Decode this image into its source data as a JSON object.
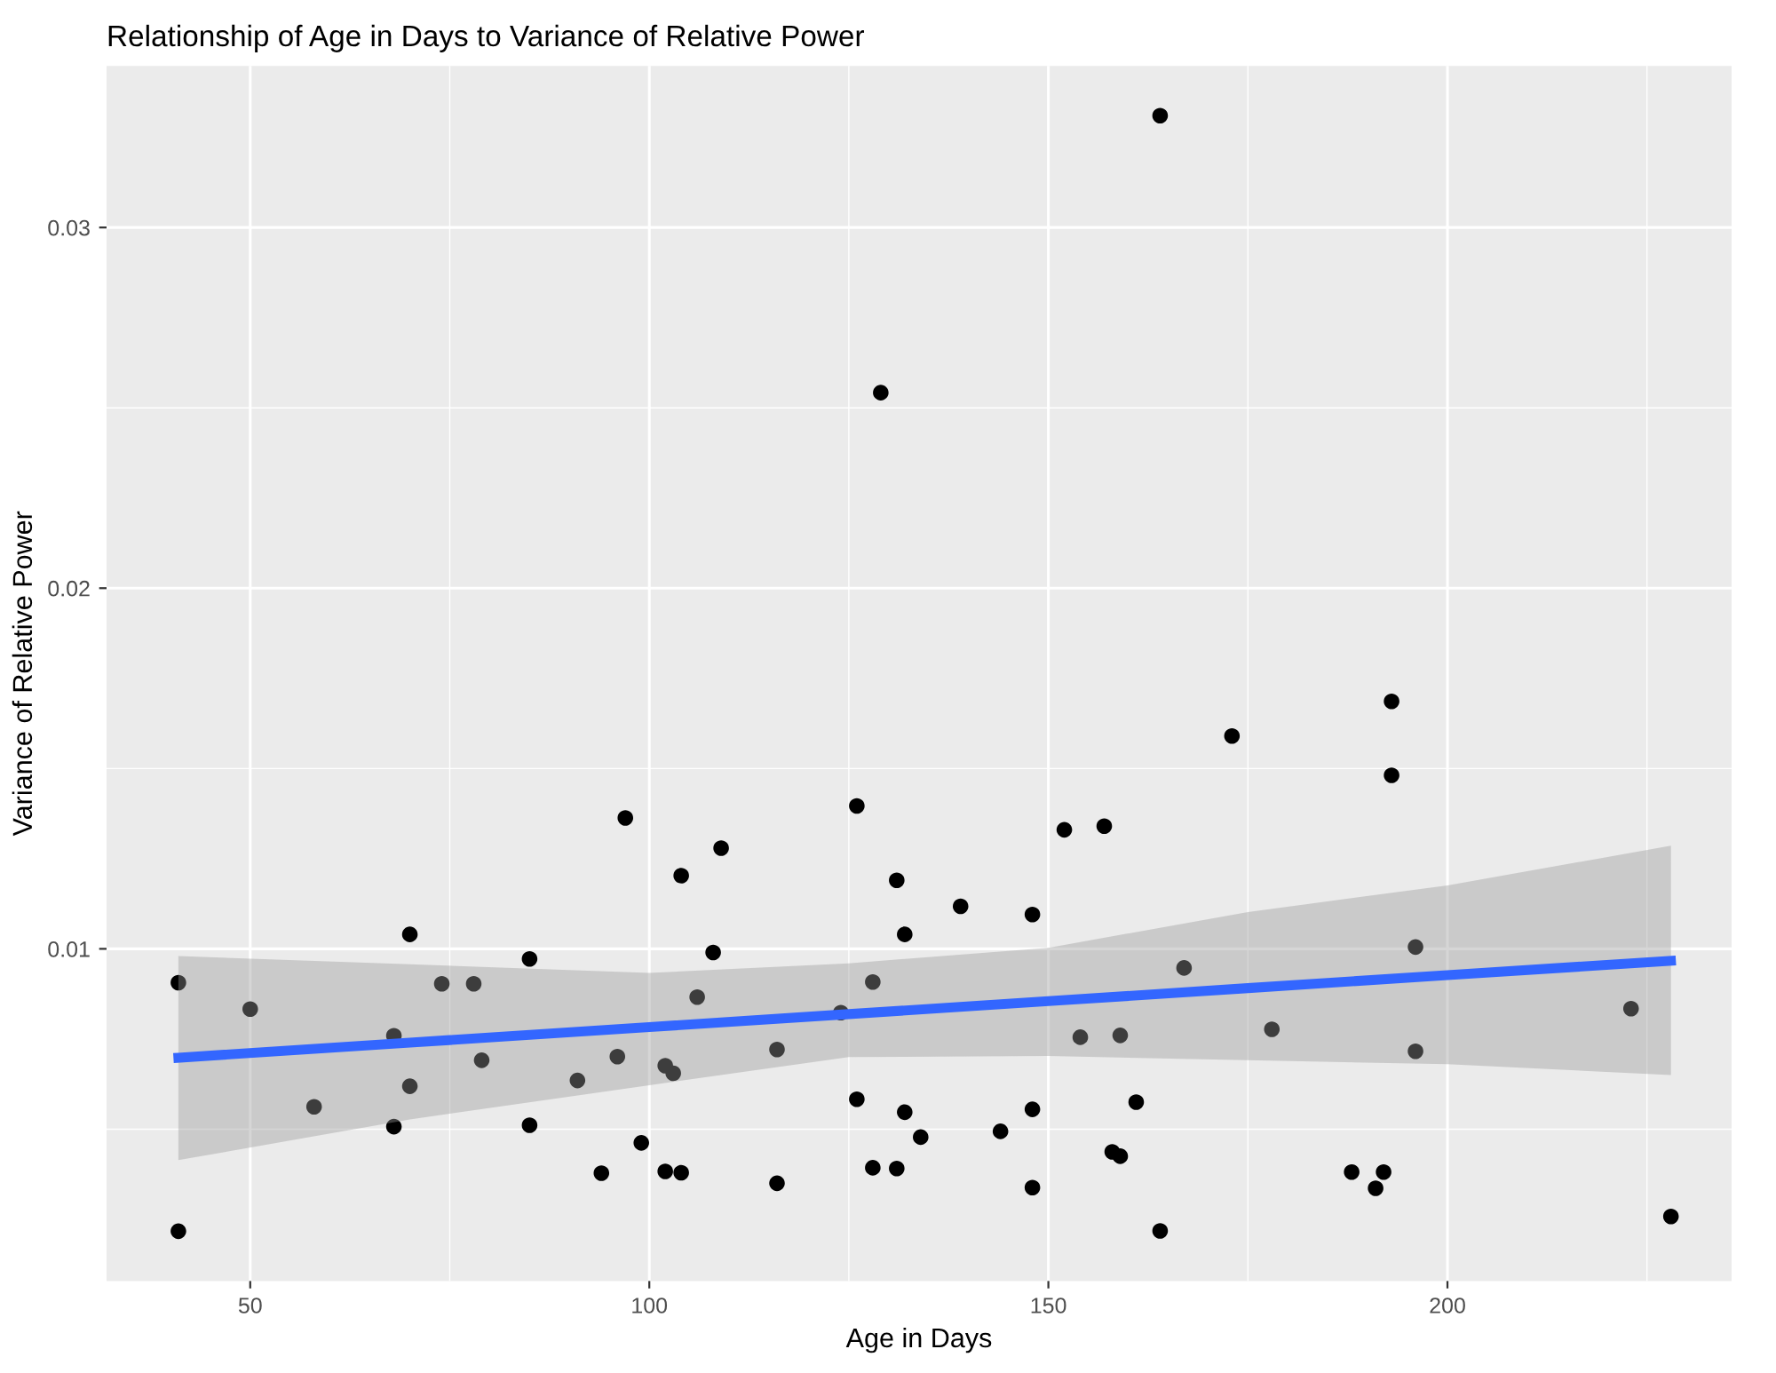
{
  "chart_data": {
    "type": "scatter",
    "title": "Relationship of Age in Days to Variance of Relative Power",
    "xlabel": "Age in Days",
    "ylabel": "Variance of Relative Power",
    "xlim": [
      32,
      235.6
    ],
    "ylim": [
      0.00079,
      0.03448
    ],
    "xticks": [
      50,
      {
        "value": 75,
        "label": null
      },
      100,
      {
        "value": 125,
        "label": null
      },
      150,
      {
        "value": 175,
        "label": null
      },
      200,
      {
        "value": 225,
        "label": null
      }
    ],
    "yticks": [
      {
        "value": 0.005,
        "label": null
      },
      0.01,
      {
        "value": 0.015,
        "label": null
      },
      0.02,
      {
        "value": 0.025,
        "label": null
      },
      0.03
    ],
    "grid": true,
    "marker": "circle",
    "series": [
      {
        "color": "#000000",
        "x": [
          41,
          41,
          50,
          58,
          68,
          68,
          70,
          70,
          74,
          78,
          79,
          85,
          85,
          91,
          96,
          97,
          94,
          99,
          102,
          103,
          102,
          104,
          104,
          106,
          108,
          109,
          116,
          116,
          124,
          126,
          126,
          128,
          128,
          131,
          132,
          132,
          131,
          134,
          139,
          148,
          144,
          148,
          148,
          152,
          157,
          154,
          159,
          158,
          159,
          161,
          164,
          167,
          173,
          178,
          188,
          192,
          191,
          193,
          193,
          196,
          196,
          223,
          228,
          129,
          164
        ],
        "values": [
          0.00906,
          0.00217,
          0.00833,
          0.00562,
          0.00759,
          0.00507,
          0.00619,
          0.0104,
          0.00903,
          0.00903,
          0.00691,
          0.00972,
          0.00511,
          0.00635,
          0.00701,
          0.01363,
          0.00378,
          0.00462,
          0.00676,
          0.00655,
          0.00383,
          0.00379,
          0.01203,
          0.00866,
          0.0099,
          0.01279,
          0.00721,
          0.0035,
          0.00823,
          0.01396,
          0.00583,
          0.00908,
          0.00393,
          0.0119,
          0.0104,
          0.00547,
          0.00391,
          0.00478,
          0.01118,
          0.01095,
          0.00494,
          0.00555,
          0.00338,
          0.0133,
          0.0134,
          0.00755,
          0.0076,
          0.00437,
          0.00425,
          0.00575,
          0.00218,
          0.00947,
          0.0159,
          0.00777,
          0.00381,
          0.00381,
          0.00336,
          0.01686,
          0.01481,
          0.01005,
          0.00716,
          0.00834,
          0.00258,
          0.02542,
          0.0331
        ]
      },
      {
        "type": "line",
        "color": "#3366ff",
        "marker": "none",
        "line_style": "solid",
        "x": [
          41,
          70,
          100,
          125,
          150,
          175,
          200,
          228
        ],
        "values": [
          0.00698,
          0.0074,
          0.00783,
          0.00819,
          0.00855,
          0.00891,
          0.00927,
          0.00967
        ],
        "lower": [
          0.00414,
          0.00527,
          0.00622,
          0.007,
          0.00703,
          0.00691,
          0.0068,
          0.0065
        ],
        "upper": [
          0.0098,
          0.00957,
          0.00933,
          0.0096,
          0.01003,
          0.01102,
          0.01176,
          0.01286
        ]
      }
    ]
  }
}
